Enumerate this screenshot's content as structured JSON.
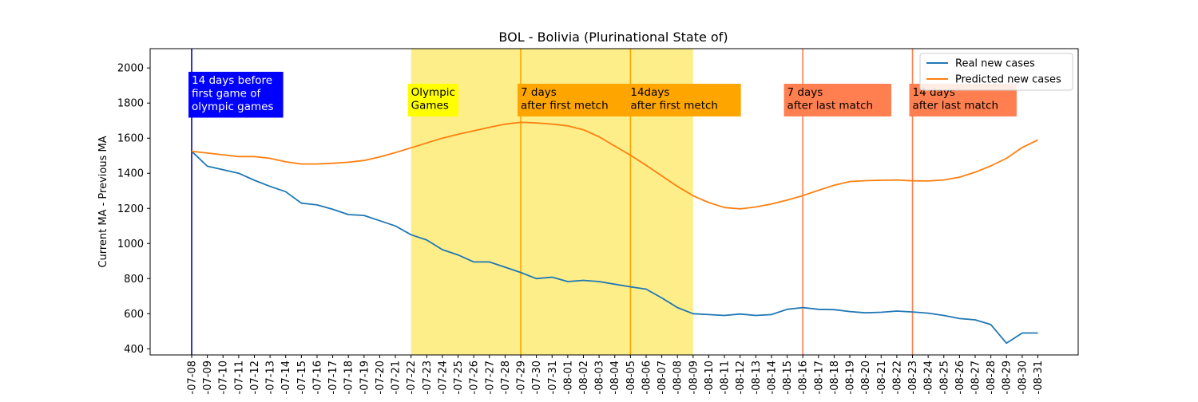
{
  "chart_data": {
    "type": "line",
    "title": "BOL - Bolivia (Plurinational State of)",
    "xlabel": "",
    "ylabel": "Current MA - Previous MA",
    "ylim": [
      365,
      2110
    ],
    "yticks": [
      400,
      600,
      800,
      1000,
      1200,
      1400,
      1600,
      1800,
      2000
    ],
    "x": [
      "07-08",
      "07-09",
      "07-10",
      "07-11",
      "07-12",
      "07-13",
      "07-14",
      "07-15",
      "07-16",
      "07-17",
      "07-18",
      "07-19",
      "07-20",
      "07-21",
      "07-22",
      "07-23",
      "07-24",
      "07-25",
      "07-26",
      "07-27",
      "07-28",
      "07-29",
      "07-30",
      "07-31",
      "08-01",
      "08-02",
      "08-03",
      "08-04",
      "08-05",
      "08-06",
      "08-07",
      "08-08",
      "08-09",
      "08-10",
      "08-11",
      "08-12",
      "08-13",
      "08-14",
      "08-15",
      "08-16",
      "08-17",
      "08-18",
      "08-19",
      "08-20",
      "08-21",
      "08-22",
      "08-23",
      "08-24",
      "08-25",
      "08-26",
      "08-27",
      "08-28",
      "08-29",
      "08-30",
      "08-31"
    ],
    "x_tick_labels": [
      "-07-08",
      "-07-09",
      "-07-10",
      "-07-11",
      "-07-12",
      "-07-13",
      "-07-14",
      "-07-15",
      "-07-16",
      "-07-17",
      "-07-18",
      "-07-19",
      "-07-20",
      "-07-21",
      "-07-22",
      "-07-23",
      "-07-24",
      "-07-25",
      "-07-26",
      "-07-27",
      "-07-28",
      "-07-29",
      "-07-30",
      "-07-31",
      "-08-01",
      "-08-02",
      "-08-03",
      "-08-04",
      "-08-05",
      "-08-06",
      "-08-07",
      "-08-08",
      "-08-09",
      "-08-10",
      "-08-11",
      "-08-12",
      "-08-13",
      "-08-14",
      "-08-15",
      "-08-16",
      "-08-17",
      "-08-18",
      "-08-19",
      "-08-20",
      "-08-21",
      "-08-22",
      "-08-23",
      "-08-24",
      "-08-25",
      "-08-26",
      "-08-27",
      "-08-28",
      "-08-29",
      "-08-30",
      "-08-31"
    ],
    "series": [
      {
        "name": "Real new cases",
        "color": "#1f77b4",
        "values": [
          1525,
          1440,
          1420,
          1400,
          1360,
          1325,
          1295,
          1230,
          1220,
          1195,
          1165,
          1160,
          1130,
          1100,
          1050,
          1020,
          965,
          935,
          895,
          895,
          865,
          835,
          800,
          808,
          783,
          790,
          783,
          768,
          753,
          740,
          690,
          635,
          600,
          595,
          590,
          598,
          590,
          595,
          625,
          635,
          625,
          623,
          612,
          605,
          608,
          615,
          610,
          603,
          590,
          572,
          565,
          538,
          432,
          490,
          490
        ]
      },
      {
        "name": "Predicted new cases",
        "color": "#ff7f0e",
        "values": [
          1525,
          1515,
          1505,
          1495,
          1495,
          1485,
          1465,
          1453,
          1453,
          1457,
          1463,
          1473,
          1493,
          1518,
          1545,
          1573,
          1600,
          1622,
          1642,
          1662,
          1680,
          1690,
          1687,
          1680,
          1670,
          1648,
          1608,
          1555,
          1503,
          1445,
          1385,
          1325,
          1272,
          1233,
          1205,
          1197,
          1208,
          1225,
          1247,
          1273,
          1303,
          1332,
          1353,
          1358,
          1360,
          1362,
          1357,
          1356,
          1362,
          1378,
          1406,
          1442,
          1485,
          1547,
          1590
        ]
      }
    ],
    "shaded_regions": [
      {
        "from": "07-22",
        "to": "08-09",
        "color": "#fdee8a"
      }
    ],
    "vertical_lines": [
      {
        "at": "07-08",
        "color": "#0000cc"
      },
      {
        "at": "07-29",
        "color": "#ffa500"
      },
      {
        "at": "08-05",
        "color": "#ffa500"
      },
      {
        "at": "08-16",
        "color": "#ff7f50"
      },
      {
        "at": "08-23",
        "color": "#ff7f50"
      }
    ],
    "annotations": [
      {
        "at": "07-08",
        "lines": [
          "14 days before",
          "first game of",
          "olympic games"
        ],
        "bg": "#0000ff",
        "fg": "#ffffff"
      },
      {
        "at": "07-22",
        "lines": [
          "Olympic",
          "Games"
        ],
        "bg": "#ffff00",
        "fg": "#000000"
      },
      {
        "at": "07-29",
        "lines": [
          "7 days",
          "after first metch"
        ],
        "bg": "#ffa500",
        "fg": "#000000"
      },
      {
        "at": "08-05",
        "lines": [
          "14days",
          "after first metch"
        ],
        "bg": "#ffa500",
        "fg": "#000000"
      },
      {
        "at": "08-15",
        "lines": [
          "7 days",
          "after last match"
        ],
        "bg": "#ff7f50",
        "fg": "#000000"
      },
      {
        "at": "08-23",
        "lines": [
          "14 days",
          "after last match"
        ],
        "bg": "#ff7f50",
        "fg": "#000000"
      }
    ],
    "legend": {
      "position": "top-right"
    }
  }
}
